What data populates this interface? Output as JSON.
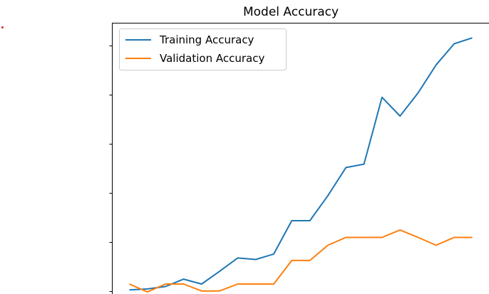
{
  "chart_data": {
    "type": "line",
    "title": "Model Accuracy",
    "xlabel": "",
    "ylabel": "",
    "x": [
      0,
      1,
      2,
      3,
      4,
      5,
      6,
      7,
      8,
      9,
      10,
      11,
      12,
      13,
      14,
      15,
      16,
      17,
      18,
      19
    ],
    "series": [
      {
        "name": "Training Accuracy",
        "color": "#1f77b4",
        "values": [
          0.002,
          0.004,
          0.009,
          0.024,
          0.014,
          0.04,
          0.067,
          0.064,
          0.075,
          0.143,
          0.143,
          0.194,
          0.251,
          0.258,
          0.394,
          0.356,
          0.403,
          0.46,
          0.503,
          0.515
        ]
      },
      {
        "name": "Validation Accuracy",
        "color": "#ff7f0e",
        "values": [
          0.014,
          -0.002,
          0.014,
          0.014,
          0.0,
          0.0,
          0.014,
          0.014,
          0.014,
          0.062,
          0.062,
          0.093,
          0.109,
          0.109,
          0.109,
          0.124,
          0.109,
          0.093,
          0.109,
          0.109
        ]
      }
    ],
    "xlim": [
      -0.95,
      19.95
    ],
    "ylim": [
      -0.02,
      0.545
    ],
    "grid": false,
    "legend": "upper-left"
  }
}
